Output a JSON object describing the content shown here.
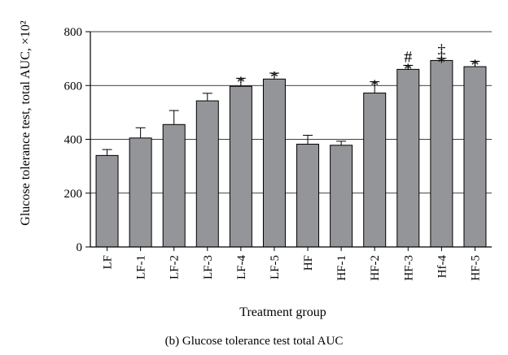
{
  "chart_data": {
    "type": "bar",
    "title": "",
    "xlabel": "Treatment group",
    "ylabel": "Glucose tolerance test, total AUC, ×10²",
    "caption": "(b)  Glucose tolerance test total AUC",
    "ylim": [
      0,
      800
    ],
    "yticks": [
      "0",
      "200",
      "400",
      "600",
      "800"
    ],
    "grid": "horizontal",
    "legend": "none",
    "bar_color": "#939598",
    "categories": [
      "LF",
      "LF-1",
      "LF-2",
      "LF-3",
      "LF-4",
      "LF-5",
      "HF",
      "HF-1",
      "HF-2",
      "HF-3",
      "Hf-4",
      "HF-5"
    ],
    "values": [
      340,
      405,
      455,
      543,
      597,
      624,
      382,
      378,
      572,
      660,
      693,
      670
    ],
    "errors": [
      22,
      38,
      52,
      28,
      30,
      22,
      33,
      15,
      42,
      15,
      8,
      20
    ],
    "annotations": [
      {
        "category": "LF-4",
        "marks": [
          "*"
        ]
      },
      {
        "category": "LF-5",
        "marks": [
          "*"
        ]
      },
      {
        "category": "HF-2",
        "marks": [
          "*"
        ]
      },
      {
        "category": "HF-3",
        "marks": [
          "*",
          "#"
        ]
      },
      {
        "category": "Hf-4",
        "marks": [
          "*",
          "‡"
        ]
      },
      {
        "category": "HF-5",
        "marks": [
          "*"
        ]
      }
    ]
  }
}
